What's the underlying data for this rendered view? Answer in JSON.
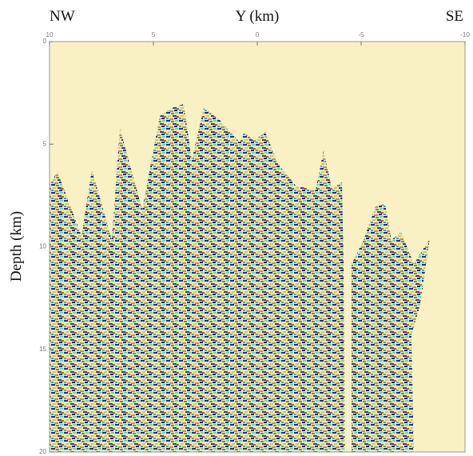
{
  "chart_data": {
    "type": "seismic-section",
    "x_label": "Y (km)",
    "y_label": "Depth (km)",
    "annotations": [
      "NW",
      "SE"
    ],
    "xlim": [
      10,
      -10
    ],
    "xticks": [
      10,
      5,
      0,
      -5,
      -10
    ],
    "ylim": [
      0,
      20
    ],
    "yticks": [
      0,
      5,
      10,
      15,
      20
    ],
    "background": "#f9f1c3"
  }
}
